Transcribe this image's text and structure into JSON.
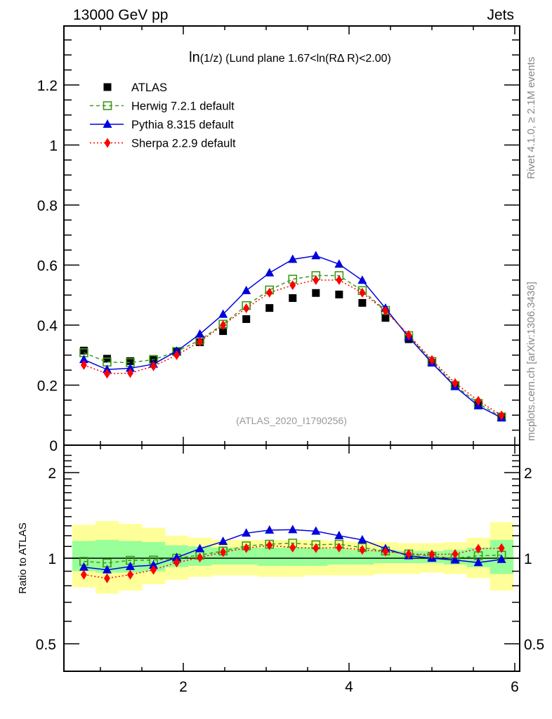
{
  "header": {
    "left": "13000 GeV pp",
    "right": "Jets",
    "side_top": "Rivet 4.1.0, ≥ 2.1M events",
    "side_bottom": "mcplots.cern.ch [arXiv:1306.3436]",
    "watermark": "(ATLAS_2020_I1790256)"
  },
  "chart_data": [
    {
      "type": "scatter",
      "title": "ln(1/z) (Lund plane 1.67<ln(RΔ R)<2.00)",
      "title_prefix": "ln",
      "title_rest": "(1/z) (Lund plane 1.67<ln(RΔ R)<2.00)",
      "xlabel": "",
      "ylabel": "",
      "xlim": [
        0.55,
        6.05
      ],
      "ylim": [
        0,
        1.4
      ],
      "yticks": [
        0,
        0.2,
        0.4,
        0.6,
        0.8,
        1,
        1.2
      ],
      "ytick_labels": [
        "0",
        "0.2",
        "0.4",
        "0.6",
        "0.8",
        "1",
        "1.2"
      ],
      "legend_position": "top-left",
      "x": [
        0.8,
        1.08,
        1.36,
        1.64,
        1.92,
        2.2,
        2.48,
        2.76,
        3.04,
        3.32,
        3.6,
        3.88,
        4.16,
        4.44,
        4.72,
        5.0,
        5.28,
        5.56,
        5.84
      ],
      "series": [
        {
          "name": "ATLAS",
          "marker": "square-filled",
          "color": "#000000",
          "line": "none",
          "values": [
            0.315,
            0.288,
            0.28,
            0.287,
            0.312,
            0.343,
            0.38,
            0.42,
            0.457,
            0.49,
            0.507,
            0.502,
            0.474,
            0.424,
            0.353,
            0.275,
            0.199,
            0.136,
            0.092
          ]
        },
        {
          "name": "Herwig 7.2.1 default",
          "marker": "square-open",
          "color": "#3a9a1a",
          "line": "dashed",
          "values": [
            0.308,
            0.277,
            0.275,
            0.285,
            0.312,
            0.35,
            0.403,
            0.465,
            0.517,
            0.553,
            0.565,
            0.565,
            0.515,
            0.449,
            0.365,
            0.279,
            0.199,
            0.139,
            0.094
          ]
        },
        {
          "name": "Pythia 8.315 default",
          "marker": "triangle-filled",
          "color": "#0000dd",
          "line": "solid",
          "values": [
            0.285,
            0.252,
            0.256,
            0.27,
            0.313,
            0.37,
            0.436,
            0.515,
            0.574,
            0.619,
            0.631,
            0.603,
            0.549,
            0.456,
            0.36,
            0.274,
            0.195,
            0.131,
            0.091
          ]
        },
        {
          "name": "Sherpa 2.2.9 default",
          "marker": "diamond-filled",
          "color": "#ff0000",
          "line": "dotted",
          "values": [
            0.267,
            0.238,
            0.24,
            0.263,
            0.3,
            0.345,
            0.4,
            0.456,
            0.508,
            0.533,
            0.55,
            0.55,
            0.508,
            0.447,
            0.367,
            0.284,
            0.207,
            0.148,
            0.099
          ]
        }
      ]
    },
    {
      "type": "scatter",
      "title": "",
      "xlabel": "",
      "ylabel": "Ratio to ATLAS",
      "yscale": "log",
      "xlim": [
        0.55,
        6.05
      ],
      "ylim": [
        0.4,
        2.4
      ],
      "xticks": [
        2,
        4,
        6
      ],
      "xtick_labels": [
        "2",
        "4",
        "6"
      ],
      "yticks": [
        0.5,
        1,
        2
      ],
      "ytick_labels": [
        "0.5",
        "1",
        "2"
      ],
      "x": [
        0.8,
        1.08,
        1.36,
        1.64,
        1.92,
        2.2,
        2.48,
        2.76,
        3.04,
        3.32,
        3.6,
        3.88,
        4.16,
        4.44,
        4.72,
        5.0,
        5.28,
        5.56,
        5.84
      ],
      "bands": {
        "inner_color": "#99ff99",
        "outer_color": "#ffff99",
        "inner_lo": [
          0.9,
          0.89,
          0.89,
          0.9,
          0.93,
          0.94,
          0.95,
          0.95,
          0.94,
          0.94,
          0.94,
          0.95,
          0.95,
          0.96,
          0.96,
          0.96,
          0.95,
          0.93,
          0.88
        ],
        "inner_hi": [
          1.15,
          1.16,
          1.15,
          1.14,
          1.11,
          1.1,
          1.09,
          1.09,
          1.09,
          1.09,
          1.09,
          1.08,
          1.07,
          1.07,
          1.06,
          1.06,
          1.07,
          1.09,
          1.16
        ],
        "outer_lo": [
          0.79,
          0.75,
          0.77,
          0.81,
          0.84,
          0.86,
          0.87,
          0.87,
          0.86,
          0.86,
          0.87,
          0.87,
          0.87,
          0.88,
          0.88,
          0.89,
          0.88,
          0.85,
          0.77
        ],
        "outer_hi": [
          1.31,
          1.35,
          1.32,
          1.28,
          1.2,
          1.18,
          1.16,
          1.16,
          1.16,
          1.16,
          1.16,
          1.15,
          1.14,
          1.14,
          1.13,
          1.13,
          1.14,
          1.18,
          1.34
        ]
      },
      "series": [
        {
          "name": "Herwig 7.2.1 default",
          "marker": "square-open",
          "color": "#3a9a1a",
          "line": "dashed",
          "values": [
            0.975,
            0.962,
            0.983,
            0.985,
            1.0,
            1.025,
            1.06,
            1.105,
            1.12,
            1.13,
            1.115,
            1.12,
            1.09,
            1.06,
            1.035,
            1.015,
            1.0,
            1.02,
            1.025
          ]
        },
        {
          "name": "Pythia 8.315 default",
          "marker": "triangle-filled",
          "color": "#0000dd",
          "line": "solid",
          "values": [
            0.93,
            0.91,
            0.935,
            0.945,
            1.005,
            1.08,
            1.145,
            1.225,
            1.255,
            1.26,
            1.245,
            1.2,
            1.16,
            1.08,
            1.02,
            1.0,
            0.985,
            0.965,
            0.99
          ]
        },
        {
          "name": "Sherpa 2.2.9 default",
          "marker": "diamond-filled",
          "color": "#ff0000",
          "line": "dotted",
          "values": [
            0.875,
            0.85,
            0.875,
            0.91,
            0.965,
            1.005,
            1.05,
            1.085,
            1.11,
            1.09,
            1.085,
            1.09,
            1.07,
            1.055,
            1.035,
            1.03,
            1.035,
            1.08,
            1.085
          ]
        }
      ]
    }
  ]
}
